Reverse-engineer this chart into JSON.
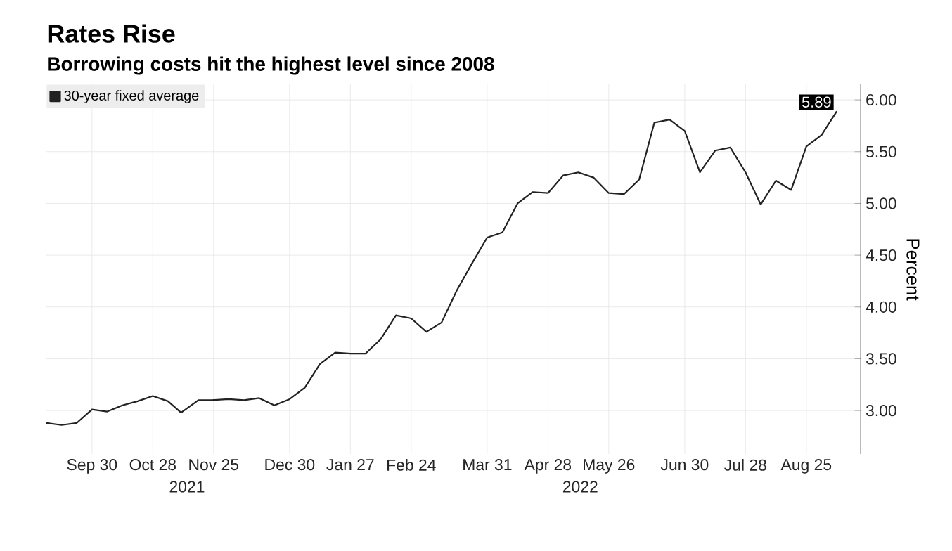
{
  "chart_data": {
    "type": "line",
    "title": "Rates Rise",
    "subtitle": "Borrowing costs hit the highest level since 2008",
    "ylabel": "Percent",
    "annotations": [
      "2021",
      "2022"
    ],
    "x": [
      "2021-09-09",
      "2021-09-16",
      "2021-09-23",
      "2021-09-30",
      "2021-10-07",
      "2021-10-14",
      "2021-10-21",
      "2021-10-28",
      "2021-11-04",
      "2021-11-10",
      "2021-11-18",
      "2021-11-24",
      "2021-12-02",
      "2021-12-09",
      "2021-12-16",
      "2021-12-23",
      "2021-12-30",
      "2022-01-06",
      "2022-01-13",
      "2022-01-20",
      "2022-01-27",
      "2022-02-03",
      "2022-02-10",
      "2022-02-17",
      "2022-02-24",
      "2022-03-03",
      "2022-03-10",
      "2022-03-17",
      "2022-03-24",
      "2022-03-31",
      "2022-04-07",
      "2022-04-14",
      "2022-04-21",
      "2022-04-28",
      "2022-05-05",
      "2022-05-12",
      "2022-05-19",
      "2022-05-26",
      "2022-06-02",
      "2022-06-09",
      "2022-06-16",
      "2022-06-23",
      "2022-06-30",
      "2022-07-07",
      "2022-07-14",
      "2022-07-21",
      "2022-07-28",
      "2022-08-04",
      "2022-08-11",
      "2022-08-18",
      "2022-08-25",
      "2022-09-01",
      "2022-09-08"
    ],
    "series": [
      {
        "name": "30-year fixed average",
        "color": "#222222",
        "values": [
          2.88,
          2.86,
          2.88,
          3.01,
          2.99,
          3.05,
          3.09,
          3.14,
          3.09,
          2.98,
          3.1,
          3.1,
          3.11,
          3.1,
          3.12,
          3.05,
          3.11,
          3.22,
          3.45,
          3.56,
          3.55,
          3.55,
          3.69,
          3.92,
          3.89,
          3.76,
          3.85,
          4.16,
          4.42,
          4.67,
          4.72,
          5.0,
          5.11,
          5.1,
          5.27,
          5.3,
          5.25,
          5.1,
          5.09,
          5.23,
          5.78,
          5.81,
          5.7,
          5.3,
          5.51,
          5.54,
          5.3,
          4.99,
          5.22,
          5.13,
          5.55,
          5.66,
          5.89
        ],
        "value_labels": [
          null,
          null,
          null,
          null,
          null,
          null,
          null,
          null,
          null,
          null,
          null,
          null,
          null,
          null,
          null,
          null,
          null,
          null,
          null,
          null,
          null,
          null,
          null,
          null,
          null,
          null,
          null,
          null,
          null,
          null,
          null,
          null,
          null,
          null,
          null,
          null,
          null,
          null,
          null,
          null,
          null,
          null,
          null,
          null,
          null,
          null,
          null,
          null,
          null,
          null,
          null,
          null,
          "5.89"
        ]
      }
    ],
    "xlim": [
      "2021-09-09",
      "2022-09-19"
    ],
    "xticks": [
      {
        "value": "2021-09-30",
        "label": "Sep 30"
      },
      {
        "value": "2021-10-28",
        "label": "Oct 28"
      },
      {
        "value": "2021-11-25",
        "label": "Nov 25"
      },
      {
        "value": "2021-12-30",
        "label": "Dec 30"
      },
      {
        "value": "2022-01-27",
        "label": "Jan 27"
      },
      {
        "value": "2022-02-24",
        "label": "Feb 24"
      },
      {
        "value": "2022-03-31",
        "label": "Mar 31"
      },
      {
        "value": "2022-04-28",
        "label": "Apr 28"
      },
      {
        "value": "2022-05-26",
        "label": "May 26"
      },
      {
        "value": "2022-06-30",
        "label": "Jun 30"
      },
      {
        "value": "2022-07-28",
        "label": "Jul 28"
      },
      {
        "value": "2022-08-25",
        "label": "Aug 25"
      }
    ],
    "ylim": [
      2.58,
      6.15
    ],
    "yticks": [
      {
        "value": 3,
        "label": "3.00"
      },
      {
        "value": 3.5,
        "label": "3.50"
      },
      {
        "value": 4,
        "label": "4.00"
      },
      {
        "value": 4.5,
        "label": "4.50"
      },
      {
        "value": 5,
        "label": "5.00"
      },
      {
        "value": 5.5,
        "label": "5.50"
      },
      {
        "value": 6,
        "label": "6.00"
      }
    ],
    "grid": true,
    "legend": "top left",
    "marker": "none",
    "line_style": "solid"
  }
}
